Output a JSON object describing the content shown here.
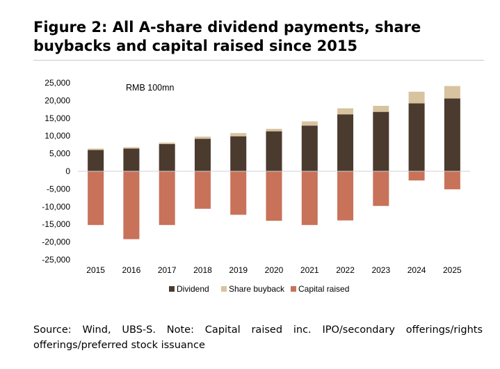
{
  "figure": {
    "title": "Figure 2: All A-share dividend payments, share buybacks and capital raised since 2015",
    "source_note": "Source: Wind, UBS-S. Note: Capital raised inc. IPO/secondary offerings/rights offerings/preferred stock issuance"
  },
  "chart_data": {
    "type": "bar",
    "stacked": true,
    "unit_label": "RMB 100mn",
    "categories": [
      "2015",
      "2016",
      "2017",
      "2018",
      "2019",
      "2020",
      "2021",
      "2022",
      "2023",
      "2024",
      "2025"
    ],
    "series": [
      {
        "name": "Dividend",
        "color": "#4b3a2e",
        "values": [
          6000,
          6400,
          7700,
          9200,
          9900,
          11300,
          12900,
          16100,
          16800,
          19200,
          20600
        ]
      },
      {
        "name": "Share buyback",
        "color": "#d8c3a0",
        "values": [
          400,
          400,
          400,
          600,
          900,
          700,
          1200,
          1700,
          1700,
          3300,
          3500
        ]
      },
      {
        "name": "Capital raised",
        "color": "#c8725a",
        "values": [
          -15200,
          -19200,
          -15200,
          -10600,
          -12300,
          -14000,
          -15200,
          -13900,
          -9800,
          -2600,
          -5100
        ]
      }
    ],
    "ylim": [
      -25000,
      25000
    ],
    "yticks": [
      25000,
      20000,
      15000,
      10000,
      5000,
      0,
      -5000,
      -10000,
      -15000,
      -20000,
      -25000
    ],
    "ytick_labels": [
      "25,000",
      "20,000",
      "15,000",
      "10,000",
      "5,000",
      "0",
      "-5,000",
      "-10,000",
      "-15,000",
      "-20,000",
      "-25,000"
    ],
    "grid": false,
    "legend_position": "bottom"
  }
}
